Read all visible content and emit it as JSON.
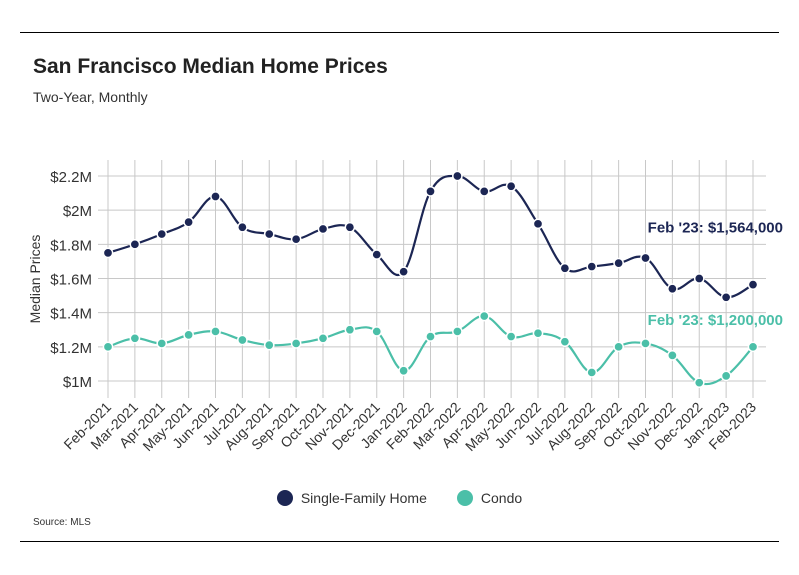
{
  "chart_data": {
    "type": "line",
    "title": "San Francisco Median Home Prices",
    "subtitle": "Two-Year, Monthly",
    "ylabel": "Median Prices",
    "xlabel": "",
    "ylim": [
      900000,
      2250000
    ],
    "yticks": [
      {
        "value": 1000000,
        "label": "$1M"
      },
      {
        "value": 1200000,
        "label": "$1.2M"
      },
      {
        "value": 1400000,
        "label": "$1.4M"
      },
      {
        "value": 1600000,
        "label": "$1.6M"
      },
      {
        "value": 1800000,
        "label": "$1.8M"
      },
      {
        "value": 2000000,
        "label": "$2M"
      },
      {
        "value": 2200000,
        "label": "$2.2M"
      }
    ],
    "categories": [
      "Feb-2021",
      "Mar-2021",
      "Apr-2021",
      "May-2021",
      "Jun-2021",
      "Jul-2021",
      "Aug-2021",
      "Sep-2021",
      "Oct-2021",
      "Nov-2021",
      "Dec-2021",
      "Jan-2022",
      "Feb-2022",
      "Mar-2022",
      "Apr-2022",
      "May-2022",
      "Jun-2022",
      "Jul-2022",
      "Aug-2022",
      "Sep-2022",
      "Oct-2022",
      "Nov-2022",
      "Dec-2022",
      "Jan-2023",
      "Feb-2023"
    ],
    "series": [
      {
        "name": "Single-Family Home",
        "color": "#1c2654",
        "values": [
          1750000,
          1800000,
          1860000,
          1930000,
          2080000,
          1900000,
          1860000,
          1830000,
          1890000,
          1900000,
          1740000,
          1640000,
          2110000,
          2200000,
          2110000,
          2140000,
          1920000,
          1660000,
          1670000,
          1690000,
          1720000,
          1540000,
          1600000,
          1490000,
          1564000
        ],
        "end_label": "Feb '23: $1,564,000"
      },
      {
        "name": "Condo",
        "color": "#4bbfa8",
        "values": [
          1200000,
          1250000,
          1220000,
          1270000,
          1290000,
          1240000,
          1210000,
          1220000,
          1250000,
          1300000,
          1290000,
          1060000,
          1260000,
          1290000,
          1380000,
          1260000,
          1280000,
          1230000,
          1050000,
          1200000,
          1220000,
          1150000,
          990000,
          1030000,
          1200000
        ],
        "end_label": "Feb '23: $1,200,000"
      }
    ],
    "grid": true,
    "legend_position": "bottom-center"
  },
  "source": "Source: MLS"
}
